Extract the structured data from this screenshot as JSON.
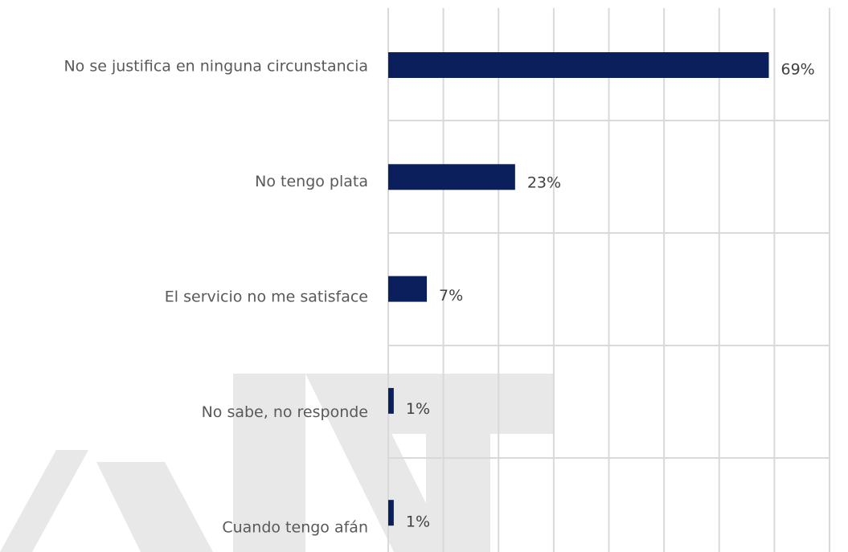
{
  "chart_data": {
    "type": "barh",
    "categories": [
      "No se justifica en ninguna circunstancia",
      "No tengo plata",
      "El servicio no me satisface",
      "No sabe, no responde",
      "Cuando tengo afán"
    ],
    "values": [
      69,
      23,
      7,
      1,
      1
    ],
    "value_labels": [
      "69%",
      "23%",
      "7%",
      "1%",
      "1%"
    ],
    "color": "#0a1f5c",
    "xlim": [
      0,
      80
    ],
    "xticks": [
      0,
      10,
      20,
      30,
      40,
      50,
      60,
      70,
      80
    ],
    "grid": true
  }
}
